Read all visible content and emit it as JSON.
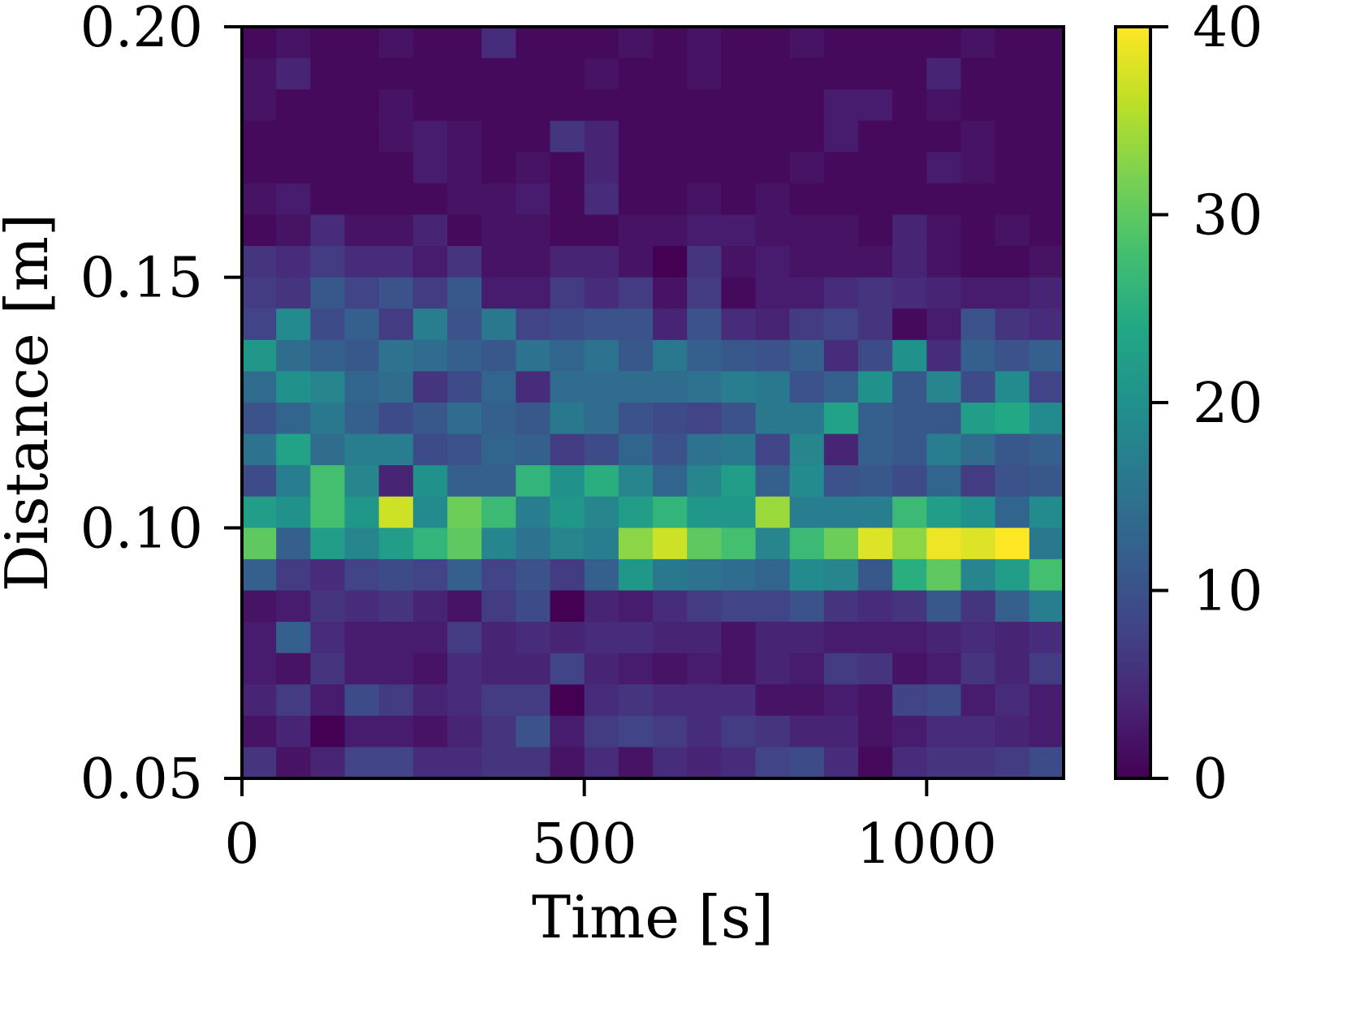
{
  "chart_data": {
    "type": "heatmap",
    "title": "",
    "xlabel": "Time [s]",
    "ylabel": "Distance [m]",
    "xlim": [
      0,
      1200
    ],
    "ylim": [
      0.05,
      0.2
    ],
    "xticks": [
      0,
      500,
      1000
    ],
    "xtick_labels": [
      "0",
      "500",
      "1000"
    ],
    "yticks": [
      0.05,
      0.1,
      0.15,
      0.2
    ],
    "ytick_labels": [
      "0.05",
      "0.10",
      "0.15",
      "0.20"
    ],
    "colorbar": {
      "range": [
        0,
        40
      ],
      "ticks": [
        0,
        10,
        20,
        30,
        40
      ],
      "tick_labels": [
        "0",
        "10",
        "20",
        "30",
        "40"
      ],
      "colormap": "viridis"
    },
    "bin_width_x": 50,
    "bin_width_y": 0.00625,
    "values_note_order": "rows from top (0.20) to bottom (0.05), columns from 0 s to 1200 s",
    "values": [
      [
        1,
        2,
        1,
        1,
        2,
        1,
        1,
        5,
        1,
        1,
        1,
        2,
        1,
        2,
        1,
        1,
        2,
        1,
        1,
        1,
        1,
        2,
        1,
        1
      ],
      [
        2,
        4,
        1,
        1,
        1,
        1,
        1,
        1,
        1,
        1,
        2,
        1,
        1,
        2,
        1,
        1,
        1,
        1,
        1,
        1,
        4,
        1,
        1,
        1
      ],
      [
        2,
        1,
        1,
        1,
        2,
        1,
        1,
        1,
        1,
        1,
        1,
        1,
        1,
        1,
        1,
        1,
        1,
        3,
        3,
        1,
        2,
        1,
        1,
        1
      ],
      [
        1,
        1,
        1,
        1,
        2,
        3,
        2,
        1,
        1,
        6,
        4,
        1,
        1,
        1,
        1,
        1,
        1,
        3,
        1,
        1,
        1,
        2,
        1,
        1
      ],
      [
        1,
        1,
        1,
        1,
        1,
        3,
        2,
        1,
        2,
        1,
        4,
        1,
        1,
        1,
        1,
        1,
        2,
        1,
        1,
        1,
        3,
        2,
        1,
        1
      ],
      [
        2,
        3,
        1,
        1,
        1,
        1,
        2,
        2,
        3,
        1,
        5,
        1,
        1,
        2,
        1,
        2,
        1,
        1,
        1,
        1,
        1,
        1,
        1,
        1
      ],
      [
        1,
        2,
        5,
        2,
        2,
        4,
        1,
        2,
        2,
        1,
        1,
        2,
        2,
        3,
        3,
        2,
        2,
        2,
        1,
        4,
        2,
        1,
        2,
        1
      ],
      [
        6,
        5,
        7,
        5,
        5,
        3,
        6,
        2,
        2,
        4,
        4,
        2,
        0,
        6,
        2,
        3,
        2,
        2,
        2,
        4,
        2,
        1,
        1,
        2
      ],
      [
        7,
        6,
        11,
        8,
        10,
        7,
        11,
        3,
        3,
        7,
        5,
        7,
        2,
        7,
        1,
        3,
        3,
        5,
        6,
        5,
        4,
        3,
        3,
        4
      ],
      [
        8,
        19,
        9,
        12,
        7,
        17,
        10,
        16,
        8,
        9,
        10,
        10,
        4,
        10,
        5,
        4,
        7,
        8,
        6,
        1,
        3,
        10,
        6,
        5
      ],
      [
        21,
        14,
        12,
        11,
        15,
        14,
        12,
        11,
        15,
        13,
        15,
        11,
        16,
        12,
        11,
        10,
        12,
        5,
        9,
        20,
        5,
        12,
        10,
        12
      ],
      [
        14,
        20,
        18,
        13,
        14,
        6,
        9,
        13,
        5,
        14,
        14,
        14,
        14,
        15,
        17,
        16,
        10,
        12,
        20,
        11,
        18,
        9,
        19,
        8
      ],
      [
        10,
        13,
        16,
        12,
        9,
        11,
        14,
        12,
        11,
        16,
        14,
        10,
        9,
        8,
        10,
        16,
        16,
        23,
        12,
        11,
        11,
        22,
        24,
        19
      ],
      [
        15,
        23,
        14,
        17,
        17,
        9,
        10,
        13,
        12,
        7,
        9,
        13,
        10,
        15,
        16,
        8,
        18,
        4,
        12,
        11,
        17,
        14,
        11,
        12
      ],
      [
        9,
        17,
        28,
        18,
        4,
        20,
        12,
        12,
        26,
        20,
        25,
        18,
        13,
        18,
        22,
        12,
        19,
        10,
        11,
        9,
        13,
        7,
        10,
        11
      ],
      [
        22,
        20,
        28,
        21,
        37,
        19,
        31,
        27,
        17,
        21,
        18,
        22,
        26,
        21,
        21,
        34,
        17,
        17,
        17,
        27,
        22,
        20,
        13,
        19
      ],
      [
        30,
        12,
        22,
        18,
        22,
        26,
        30,
        18,
        15,
        18,
        17,
        33,
        37,
        30,
        28,
        18,
        27,
        31,
        38,
        33,
        39,
        38,
        40,
        16
      ],
      [
        12,
        7,
        5,
        8,
        9,
        8,
        12,
        8,
        10,
        7,
        12,
        21,
        16,
        15,
        14,
        13,
        19,
        18,
        11,
        25,
        30,
        18,
        22,
        28
      ],
      [
        2,
        3,
        6,
        5,
        6,
        4,
        2,
        7,
        9,
        0,
        4,
        3,
        5,
        7,
        8,
        8,
        10,
        6,
        5,
        6,
        11,
        6,
        12,
        17
      ],
      [
        3,
        12,
        5,
        3,
        3,
        3,
        7,
        4,
        5,
        4,
        5,
        5,
        4,
        4,
        2,
        4,
        4,
        3,
        3,
        3,
        4,
        5,
        4,
        5
      ],
      [
        3,
        2,
        6,
        3,
        3,
        2,
        5,
        4,
        4,
        8,
        4,
        3,
        2,
        3,
        2,
        4,
        3,
        7,
        6,
        2,
        3,
        6,
        4,
        7
      ],
      [
        4,
        7,
        3,
        9,
        7,
        4,
        5,
        7,
        7,
        0,
        5,
        6,
        5,
        5,
        5,
        2,
        2,
        3,
        2,
        8,
        9,
        3,
        5,
        3
      ],
      [
        2,
        4,
        0,
        3,
        3,
        2,
        4,
        6,
        10,
        3,
        7,
        8,
        7,
        5,
        7,
        6,
        4,
        4,
        2,
        3,
        5,
        5,
        4,
        3
      ],
      [
        6,
        2,
        4,
        8,
        8,
        5,
        5,
        6,
        6,
        2,
        5,
        2,
        5,
        4,
        5,
        8,
        9,
        5,
        1,
        5,
        6,
        6,
        7,
        9
      ]
    ]
  }
}
